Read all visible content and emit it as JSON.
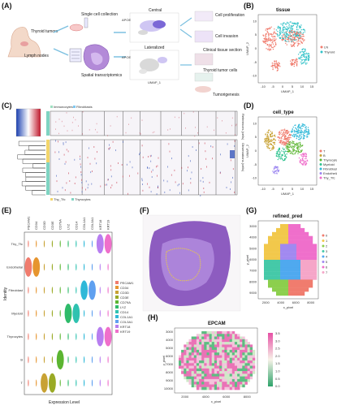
{
  "panels": {
    "A": {
      "letter": "(A)",
      "left_labels": [
        "Thyroid tumors",
        "Lymph nodes"
      ],
      "middle_labels": [
        "Single cell collection",
        "Spatial transcriptomics"
      ],
      "umap_labels": [
        "Central",
        "Lateralized"
      ],
      "umap_axis": [
        "UMAP_1",
        "UMAP_2"
      ],
      "stain": "APOE",
      "outcomes": [
        "Cell proliferation",
        "Cell invasion",
        "Clinical tissue section",
        "Thyroid tumor cells",
        "Tumorigenesis"
      ]
    },
    "B": {
      "letter": "(B)",
      "title": "tissue",
      "xlabel": "UMAP_1",
      "ylabel": "UMAP_2",
      "xticks": [
        "-10",
        "-5",
        "0",
        "5",
        "10",
        "15"
      ],
      "yticks": [
        "10",
        "5",
        "0",
        "-5",
        "-10"
      ],
      "legend": [
        {
          "name": "LN",
          "color": "#f07c6e"
        },
        {
          "name": "Thyroid",
          "color": "#2fc1c7"
        }
      ]
    },
    "C": {
      "letter": "(C)",
      "legend_top": [
        "Immunocytes",
        "Fibroblasts"
      ],
      "legend_bottom": [
        "Thy_Tfc",
        "Thyrocytes"
      ],
      "side_labels": [
        "References (cells)",
        "Observations (cells)"
      ]
    },
    "D": {
      "letter": "(D)",
      "title": "cell_type",
      "xlabel": "UMAP_1",
      "ylabel": "UMAP_2",
      "xticks": [
        "-10",
        "-5",
        "0",
        "5",
        "10",
        "15"
      ],
      "yticks": [
        "10",
        "5",
        "0",
        "-5",
        "-10"
      ],
      "legend": [
        {
          "name": "T",
          "color": "#f07c6e"
        },
        {
          "name": "B",
          "color": "#c8a234"
        },
        {
          "name": "Thyrocytes",
          "color": "#5bb531"
        },
        {
          "name": "Myeloid",
          "color": "#2fc38f"
        },
        {
          "name": "Fibroblast",
          "color": "#2fb8d8"
        },
        {
          "name": "Endothelial",
          "color": "#9a84f0"
        },
        {
          "name": "Thy_Tfc",
          "color": "#ef6fcb"
        }
      ]
    },
    "E": {
      "letter": "(E)",
      "ylabel": "Identity",
      "xlabel": "Expression Level",
      "rows": [
        "Thy_Tfc",
        "Endothelial",
        "Fibroblast",
        "Myeloid",
        "Thyrocytes",
        "B",
        "T"
      ],
      "genes": [
        "PECAM1",
        "CD34",
        "CD3D",
        "CD3E",
        "CD79A",
        "LYZ",
        "CD14",
        "COL1A1",
        "COL3A1",
        "KRT18",
        "KRT19"
      ],
      "gene_colors": [
        "#f07c6e",
        "#e6952f",
        "#c8a234",
        "#9aaa25",
        "#5bb531",
        "#2fbb6a",
        "#2fc2b0",
        "#2fb8d8",
        "#5fa0f0",
        "#b77ef0",
        "#ef6fcb"
      ]
    },
    "F": {
      "letter": "(F)"
    },
    "G": {
      "letter": "(G)",
      "title": "refined_pred",
      "xlabel": "x_pixel",
      "ylabel": "y_pixel",
      "xticks": [
        "2000",
        "4000",
        "6000",
        "8000"
      ],
      "yticks": [
        "3000",
        "4000",
        "5000",
        "6000",
        "7000",
        "8000",
        "9000"
      ],
      "legend": [
        {
          "name": "0",
          "color": "#f07c6e"
        },
        {
          "name": "1",
          "color": "#f2c84b"
        },
        {
          "name": "2",
          "color": "#8ccf4d"
        },
        {
          "name": "3",
          "color": "#45c9a8"
        },
        {
          "name": "4",
          "color": "#4fa9ef"
        },
        {
          "name": "5",
          "color": "#a189f0"
        },
        {
          "name": "6",
          "color": "#ef6fcb"
        },
        {
          "name": "7",
          "color": "#f5a6c8"
        }
      ]
    },
    "H": {
      "letter": "(H)",
      "title": "EPCAM",
      "xlabel": "x_pixel",
      "ylabel": "y_pixel",
      "xticks": [
        "2000",
        "4000",
        "6000",
        "8000"
      ],
      "yticks": [
        "3000",
        "4000",
        "5000",
        "6000",
        "7000",
        "8000",
        "9000",
        "10000"
      ],
      "colorbar": [
        "3.5",
        "3.0",
        "2.5",
        "2.0",
        "1.5",
        "1.0",
        "0.5",
        "0.0"
      ]
    }
  }
}
